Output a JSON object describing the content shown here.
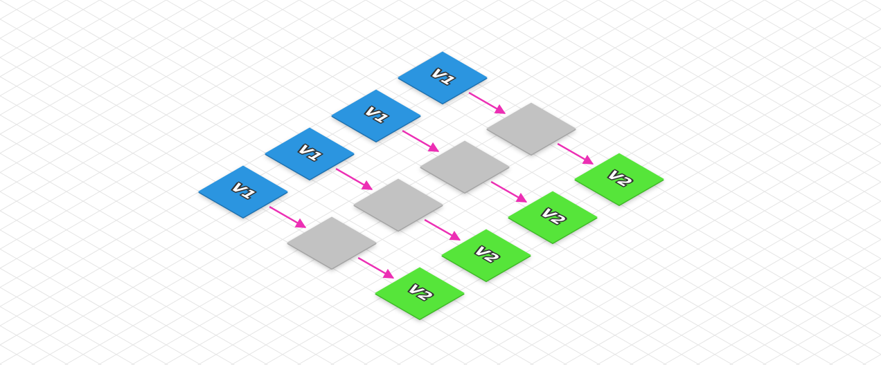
{
  "diagram": {
    "type": "isometric-flow",
    "colors": {
      "source": "#2b95e0",
      "intermediate": "#c2c2c2",
      "target": "#56e53a",
      "arrow": "#ec2fb4",
      "grid": "#e4e4e4"
    },
    "rows": [
      {
        "source": "V1",
        "intermediate": "",
        "target": "V2"
      },
      {
        "source": "V1",
        "intermediate": "",
        "target": "V2"
      },
      {
        "source": "V1",
        "intermediate": "",
        "target": "V2"
      },
      {
        "source": "V1",
        "intermediate": "",
        "target": "V2"
      }
    ]
  }
}
